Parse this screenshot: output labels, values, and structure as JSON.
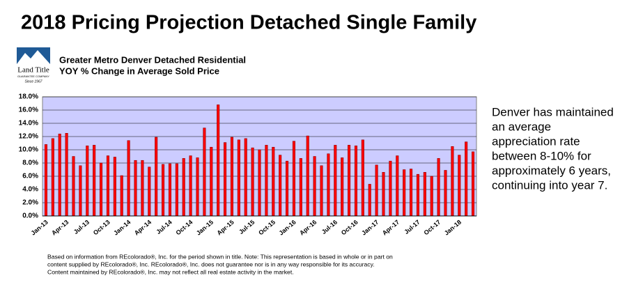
{
  "header": {
    "title": "2018 Pricing Projection Detached Single Family"
  },
  "logo": {
    "name": "Land Title",
    "company": "GUARANTEE COMPANY",
    "since": "Since 1967"
  },
  "chart_data": {
    "type": "bar",
    "title_lines": [
      "Greater Metro Denver Detached Residential",
      "YOY % Change in Average Sold Price"
    ],
    "categories": [
      "Jan-13",
      null,
      null,
      "Apr-13",
      null,
      null,
      "Jul-13",
      null,
      null,
      "Oct-13",
      null,
      null,
      "Jan-14",
      null,
      null,
      "Apr-14",
      null,
      null,
      "Jul-14",
      null,
      null,
      "Oct-14",
      null,
      null,
      "Jan-15",
      null,
      null,
      "Apr-15",
      null,
      null,
      "Jul-15",
      null,
      null,
      "Oct-15",
      null,
      null,
      "Jan-16",
      null,
      null,
      "Apr-16",
      null,
      null,
      "Jul-16",
      null,
      null,
      "Oct-16",
      null,
      null,
      "Jan-17",
      null,
      null,
      "Apr-17",
      null,
      null,
      "Jul-17",
      null,
      null,
      "Oct-17",
      null,
      null,
      "Jan-18",
      null,
      null
    ],
    "values": [
      10.8,
      11.7,
      12.4,
      12.5,
      9.0,
      7.6,
      10.6,
      10.7,
      8.0,
      9.1,
      8.9,
      6.1,
      11.4,
      8.4,
      8.4,
      7.4,
      11.9,
      7.8,
      7.9,
      7.9,
      8.7,
      9.1,
      8.8,
      13.3,
      10.4,
      16.8,
      11.1,
      11.9,
      11.5,
      11.7,
      10.3,
      10.0,
      10.7,
      10.4,
      9.2,
      8.3,
      11.3,
      8.7,
      12.1,
      9.0,
      7.6,
      9.4,
      10.7,
      8.8,
      10.7,
      10.6,
      11.5,
      4.8,
      7.7,
      6.6,
      8.3,
      9.1,
      7.0,
      7.1,
      6.3,
      6.6,
      6.0,
      8.7,
      6.9,
      10.5,
      9.2,
      11.2,
      9.7
    ],
    "color": "#ff0000",
    "ylim": [
      0,
      18
    ],
    "yticks": [
      {
        "value": 0,
        "label": "0.0%"
      },
      {
        "value": 2,
        "label": "2.0%"
      },
      {
        "value": 4,
        "label": "4.0%"
      },
      {
        "value": 6,
        "label": "6.0%"
      },
      {
        "value": 8,
        "label": "8.0%"
      },
      {
        "value": 10,
        "label": "10.0%"
      },
      {
        "value": 12,
        "label": "12.0%"
      },
      {
        "value": 14,
        "label": "14.0%"
      },
      {
        "value": 16,
        "label": "16.0%"
      },
      {
        "value": 18,
        "label": "18.0%"
      }
    ],
    "grid": true,
    "background": "#ccccff"
  },
  "commentary": {
    "lines": [
      "Denver has maintained",
      "an average",
      "appreciation rate",
      "between 8-10% for",
      "approximately 6 years,",
      "continuing into year 7."
    ]
  },
  "footnote": {
    "lines": [
      "Based on information from REcolorado®, Inc. for the period shown in title. Note: This representation is based in whole or in part on",
      "content supplied by REcolorado®, Inc. REcolorado®, Inc. does not guarantee nor is in any way responsible for its accuracy.",
      "Content maintained by REcolorado®, Inc. may not reflect all real estate activity in the market."
    ]
  }
}
